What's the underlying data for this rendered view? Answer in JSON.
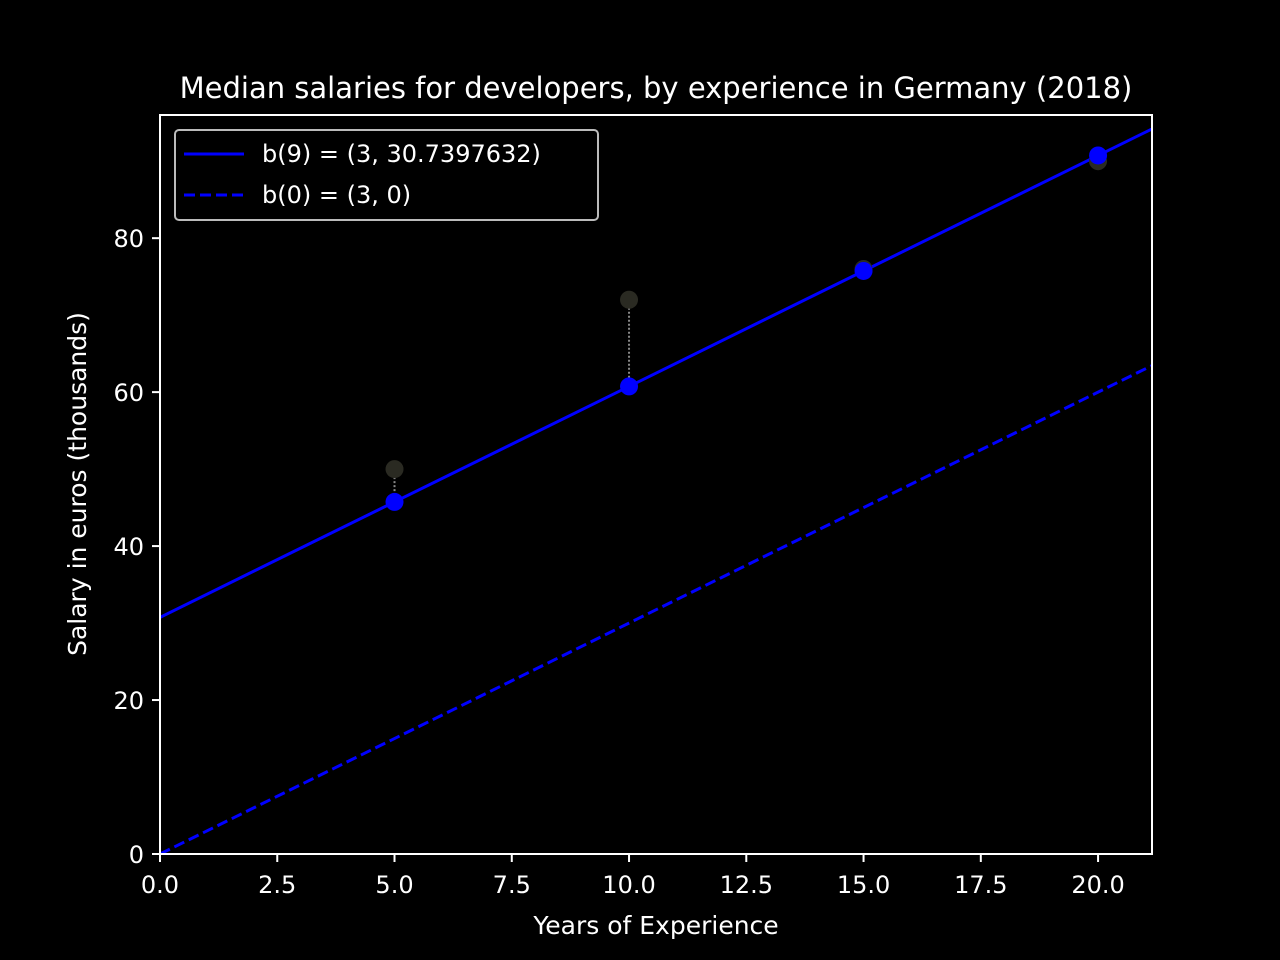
{
  "chart_data": {
    "type": "line",
    "title": "Median salaries for developers, by experience in Germany (2018)",
    "xlabel": "Years of Experience",
    "ylabel": "Salary in euros (thousands)",
    "xlim": [
      0,
      21.15
    ],
    "ylim": [
      0,
      96
    ],
    "x_ticks": [
      0.0,
      2.5,
      5.0,
      7.5,
      10.0,
      12.5,
      15.0,
      17.5,
      20.0
    ],
    "x_tick_labels": [
      "0.0",
      "2.5",
      "5.0",
      "7.5",
      "10.0",
      "12.5",
      "15.0",
      "17.5",
      "20.0"
    ],
    "y_ticks": [
      0,
      20,
      40,
      60,
      80
    ],
    "y_tick_labels": [
      "0",
      "20",
      "40",
      "60",
      "80"
    ],
    "grid": false,
    "legend_position": "top-left",
    "series": [
      {
        "name": "b(9) = (3, 30.7397632)",
        "style": "solid",
        "color": "#0000ff",
        "slope": 3,
        "intercept": 30.7397632
      },
      {
        "name": "b(0) = (3, 0)",
        "style": "dashed",
        "color": "#0000ff",
        "slope": 3,
        "intercept": 0
      }
    ],
    "actual_points": {
      "color": "#2a2a22",
      "x": [
        5,
        10,
        15,
        20
      ],
      "y": [
        50,
        72,
        76,
        90
      ]
    },
    "predicted_points": {
      "color": "#0000ff",
      "x": [
        5,
        10,
        15,
        20
      ],
      "y": [
        45.74,
        60.74,
        75.74,
        90.74
      ]
    }
  }
}
